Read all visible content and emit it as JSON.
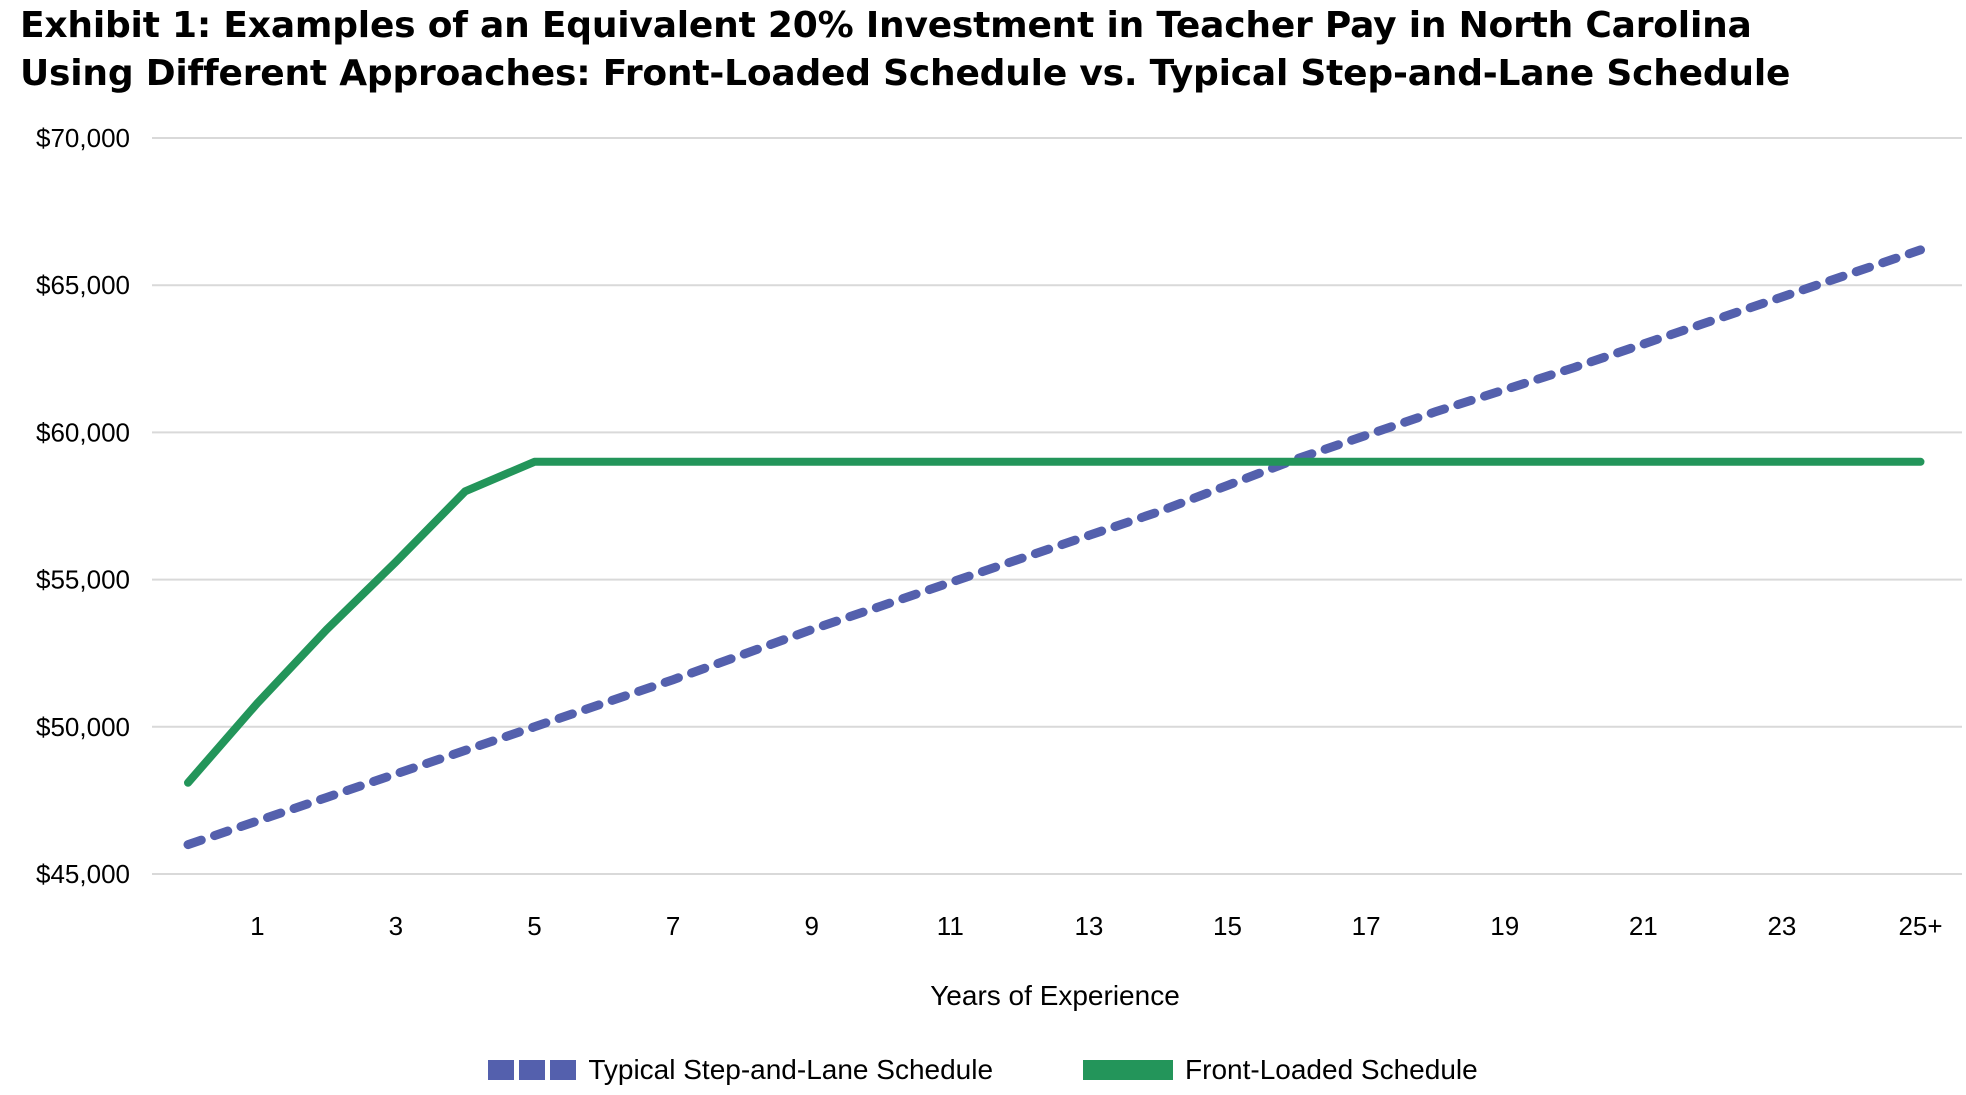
{
  "chart_data": {
    "type": "line",
    "title_lines": [
      "Exhibit 1: Examples of an Equivalent 20% Investment in Teacher Pay in North Carolina",
      "Using Different Approaches: Front-Loaded Schedule vs. Typical Step-and-Lane Schedule"
    ],
    "xlabel": "Years of Experience",
    "ylabel": "",
    "x_categories": [
      "0",
      "1",
      "2",
      "3",
      "4",
      "5",
      "6",
      "7",
      "8",
      "9",
      "10",
      "11",
      "12",
      "13",
      "14",
      "15",
      "16",
      "17",
      "18",
      "19",
      "20",
      "21",
      "22",
      "23",
      "24",
      "25+"
    ],
    "x_tick_labels": [
      "1",
      "3",
      "5",
      "7",
      "9",
      "11",
      "13",
      "15",
      "17",
      "19",
      "21",
      "23",
      "25+"
    ],
    "y_ticks": [
      "$45,000",
      "$50,000",
      "$55,000",
      "$60,000",
      "$65,000",
      "$70,000"
    ],
    "ylim": [
      45000,
      70000
    ],
    "grid": "horizontal",
    "legend_position": "bottom",
    "series": [
      {
        "name": "Typical Step-and-Lane Schedule",
        "color": "#5460ad",
        "style": "dashed",
        "values": [
          46000,
          46800,
          47600,
          48400,
          49200,
          50000,
          50800,
          51600,
          52450,
          53300,
          54100,
          54900,
          55700,
          56500,
          57300,
          58200,
          59100,
          59900,
          60700,
          61450,
          62200,
          63000,
          63800,
          64600,
          65400,
          66200
        ]
      },
      {
        "name": "Front-Loaded Schedule",
        "color": "#23955a",
        "style": "solid",
        "values": [
          48100,
          50800,
          53300,
          55600,
          58000,
          59000,
          59000,
          59000,
          59000,
          59000,
          59000,
          59000,
          59000,
          59000,
          59000,
          59000,
          59000,
          59000,
          59000,
          59000,
          59000,
          59000,
          59000,
          59000,
          59000,
          59000
        ]
      }
    ]
  }
}
